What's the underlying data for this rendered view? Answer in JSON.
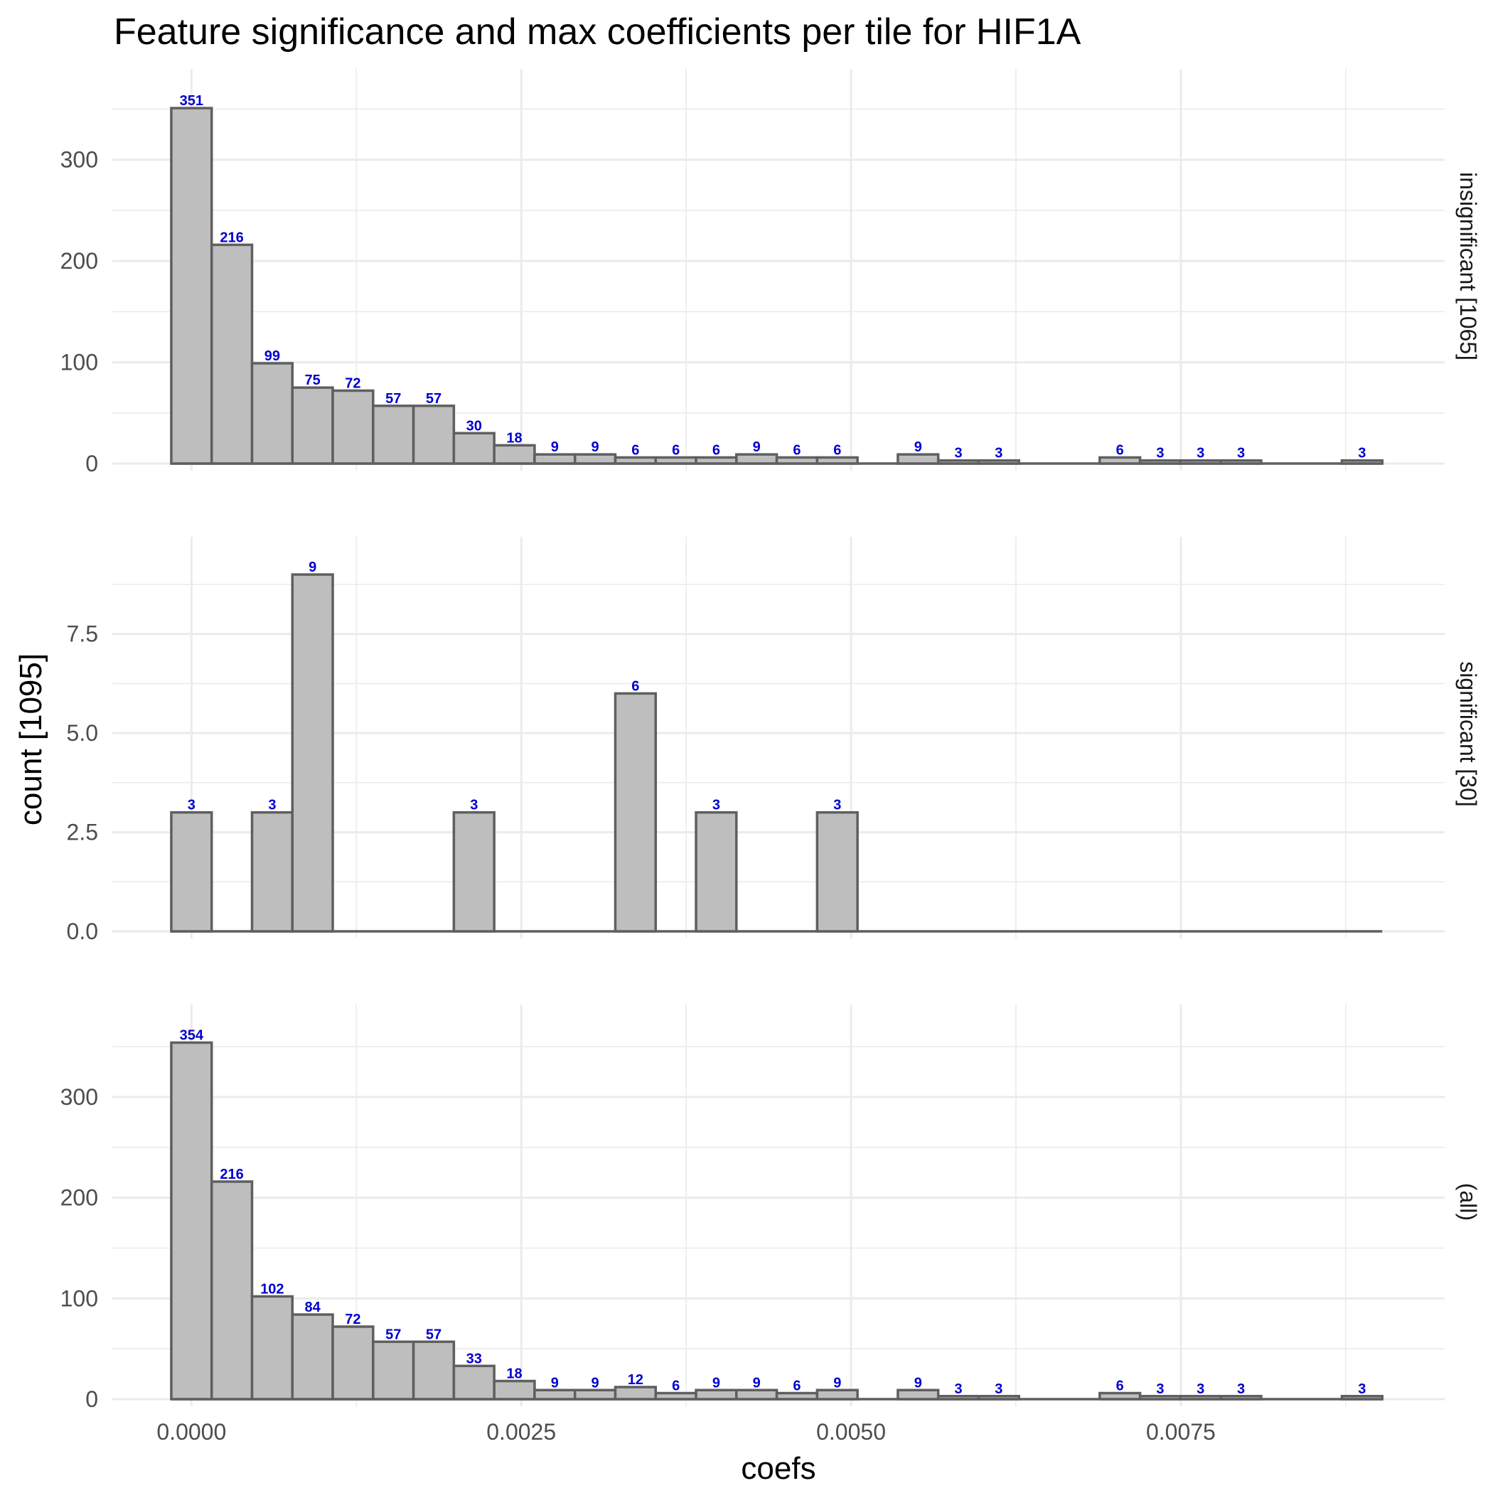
{
  "chart_data": {
    "type": "bar",
    "title": "Feature significance and max coefficients per tile for HIF1A",
    "xlabel": "coefs",
    "ylabel": "count [1095]",
    "x_ticks": [
      0.0,
      0.0025,
      0.005,
      0.0075
    ],
    "x_tick_labels": [
      "0.0000",
      "0.0025",
      "0.0050",
      "0.0075"
    ],
    "xlim": [
      -0.0006,
      0.0095
    ],
    "bin_width": 0.000306,
    "bin_start": -0.000153,
    "grid": true,
    "panels": [
      {
        "strip_label": "insignificant [1065]",
        "ylim": [
          0,
          370
        ],
        "y_ticks": [
          0,
          100,
          200,
          300
        ],
        "y_tick_labels": [
          "0",
          "100",
          "200",
          "300"
        ],
        "values": [
          351,
          216,
          99,
          75,
          72,
          57,
          57,
          30,
          18,
          9,
          9,
          6,
          6,
          6,
          9,
          6,
          6,
          0,
          9,
          3,
          3,
          0,
          0,
          6,
          3,
          3,
          3,
          0,
          0,
          3
        ]
      },
      {
        "strip_label": "significant [30]",
        "ylim": [
          0,
          9.45
        ],
        "y_ticks": [
          0,
          2.5,
          5,
          7.5
        ],
        "y_tick_labels": [
          "0.0",
          "2.5",
          "5.0",
          "7.5"
        ],
        "values": [
          3,
          0,
          3,
          9,
          0,
          0,
          0,
          3,
          0,
          0,
          0,
          6,
          0,
          3,
          0,
          0,
          3,
          0,
          0,
          0,
          0,
          0,
          0,
          0,
          0,
          0,
          0,
          0,
          0,
          0
        ]
      },
      {
        "strip_label": "(all)",
        "ylim": [
          0,
          372
        ],
        "y_ticks": [
          0,
          100,
          200,
          300
        ],
        "y_tick_labels": [
          "0",
          "100",
          "200",
          "300"
        ],
        "values": [
          354,
          216,
          102,
          84,
          72,
          57,
          57,
          33,
          18,
          9,
          9,
          12,
          6,
          9,
          9,
          6,
          9,
          0,
          9,
          3,
          3,
          0,
          0,
          6,
          3,
          3,
          3,
          0,
          0,
          3
        ]
      }
    ],
    "colors": {
      "bar_fill": "#bebebe",
      "bar_stroke": "#5f5f5f",
      "label": "#0000cc",
      "grid": "#ebebeb"
    }
  }
}
